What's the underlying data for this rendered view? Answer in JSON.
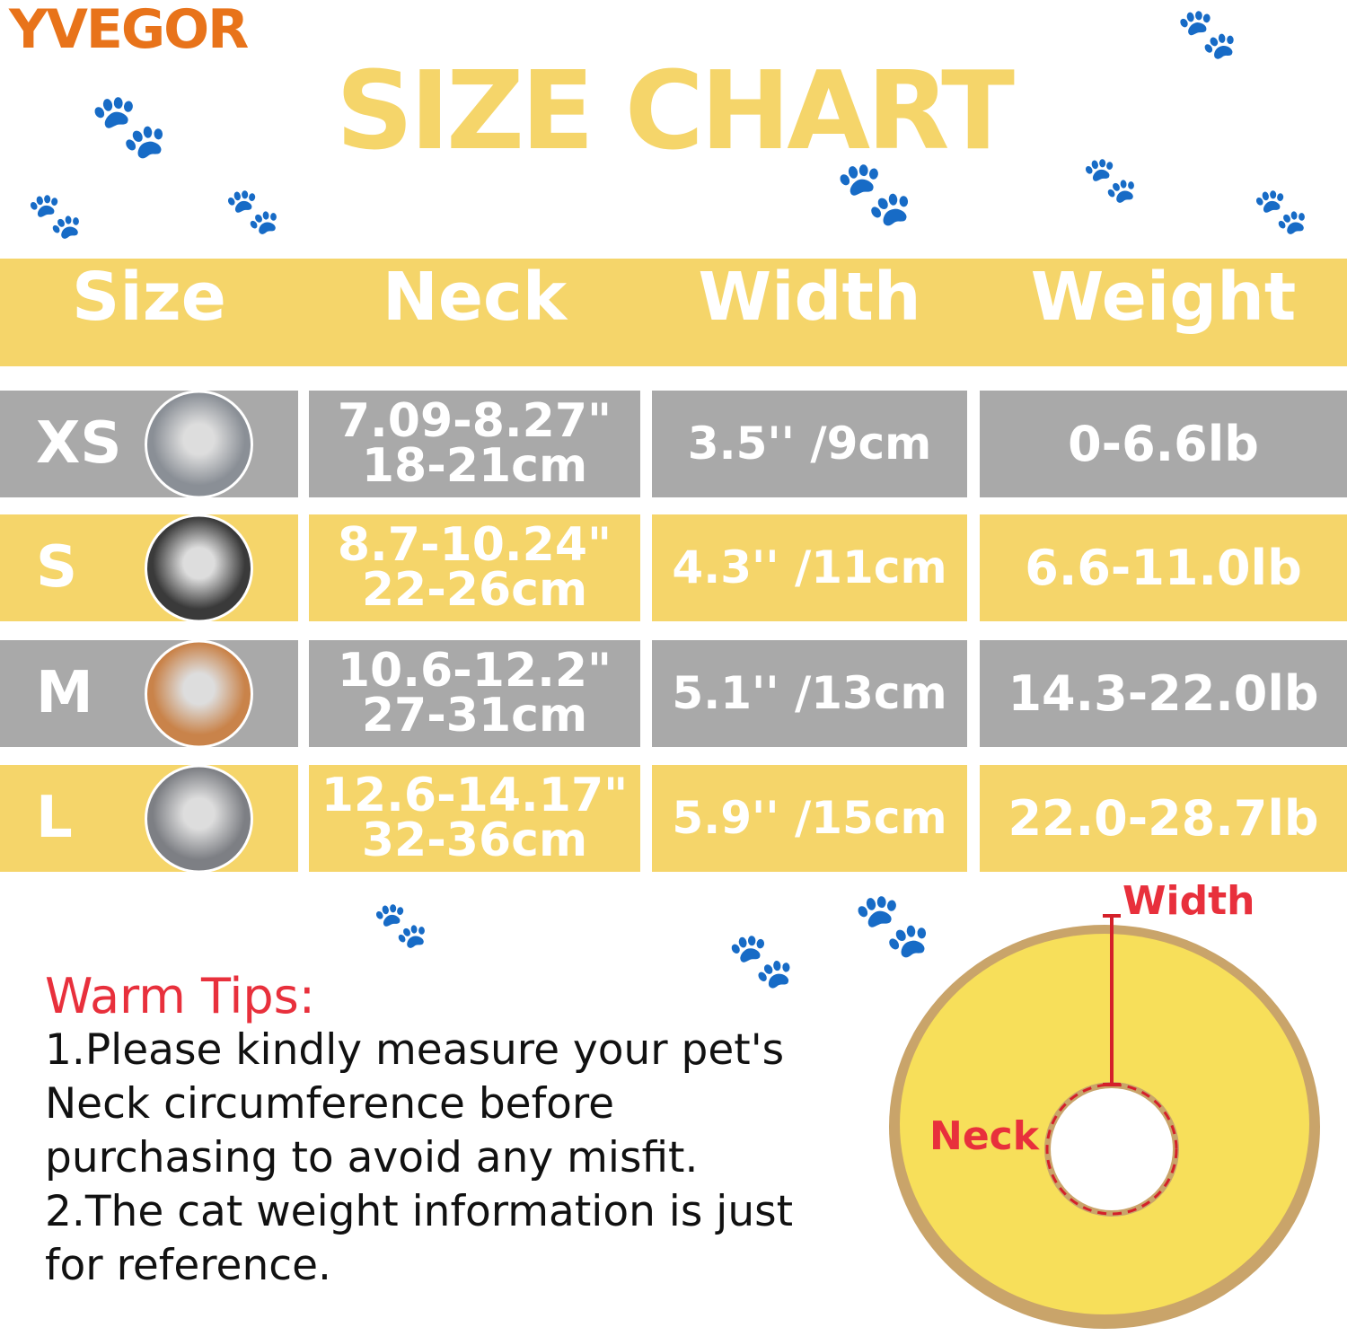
{
  "brand": "YVEGOR",
  "title": "SIZE CHART",
  "colors": {
    "yellow": "#F5D56A",
    "grey": "#A9A9A9",
    "red": "#E8303C",
    "brand": "#E8731A"
  },
  "table": {
    "headers": [
      "Size",
      "Neck",
      "Width",
      "Weight"
    ],
    "rows": [
      {
        "size": "XS",
        "neck_in": "7.09-8.27\"",
        "neck_cm": "18-21cm",
        "width": "3.5'' /9cm",
        "weight": "0-6.6lb",
        "cat_icon": "grey-british-shorthair-photo"
      },
      {
        "size": "S",
        "neck_in": "8.7-10.24\"",
        "neck_cm": "22-26cm",
        "width": "4.3'' /11cm",
        "weight": "6.6-11.0lb",
        "cat_icon": "black-white-cat-photo"
      },
      {
        "size": "M",
        "neck_in": "10.6-12.2\"",
        "neck_cm": "27-31cm",
        "width": "5.1'' /13cm",
        "weight": "14.3-22.0lb",
        "cat_icon": "orange-tabby-cat-photo"
      },
      {
        "size": "L",
        "neck_in": "12.6-14.17\"",
        "neck_cm": "32-36cm",
        "width": "5.9'' /15cm",
        "weight": "22.0-28.7lb",
        "cat_icon": "scottish-fold-cat-photo"
      }
    ]
  },
  "tips": {
    "heading": "Warm Tips:",
    "lines": [
      "1.Please kindly measure your pet's",
      "Neck circumference before",
      "purchasing to avoid any misfit.",
      "2.The cat weight information is just",
      "for reference."
    ]
  },
  "diagram": {
    "width_label": "Width",
    "neck_label": "Neck"
  }
}
